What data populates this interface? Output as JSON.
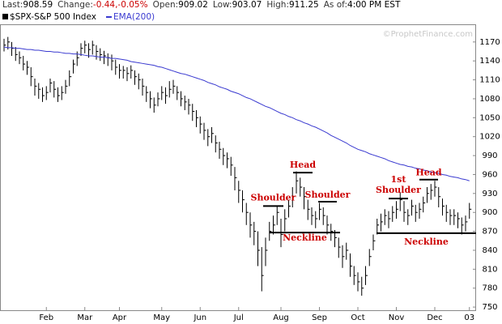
{
  "header": [
    {
      "label": "Last:",
      "value": "908.59"
    },
    {
      "label": "Change:",
      "value": "-0.44,-0.05%"
    },
    {
      "label": "Open:",
      "value": "909.02"
    },
    {
      "label": "Low:",
      "value": "903.07"
    },
    {
      "label": "High:",
      "value": "911.25"
    },
    {
      "label": "As of:",
      "value": "4:00 PM EST"
    }
  ],
  "watermark": "©ProphetFinance.com",
  "chart_data": {
    "type": "ohlc",
    "categories": [
      null,
      null,
      null,
      null,
      null,
      null,
      null,
      null,
      null,
      null,
      null,
      "Feb",
      null,
      null,
      null,
      null,
      null,
      null,
      null,
      null,
      null,
      "Mar",
      null,
      null,
      null,
      null,
      null,
      null,
      null,
      null,
      "Apr",
      null,
      null,
      null,
      null,
      null,
      null,
      null,
      null,
      null,
      null,
      "May",
      null,
      null,
      null,
      null,
      null,
      null,
      null,
      null,
      null,
      "Jun",
      null,
      null,
      null,
      null,
      null,
      null,
      null,
      null,
      null,
      "Jul",
      null,
      null,
      null,
      null,
      null,
      null,
      null,
      null,
      null,
      null,
      "Aug",
      null,
      null,
      null,
      null,
      null,
      null,
      null,
      null,
      null,
      "Sep",
      null,
      null,
      null,
      null,
      null,
      null,
      null,
      null,
      null,
      "Oct",
      null,
      null,
      null,
      null,
      null,
      null,
      null,
      null,
      null,
      "Nov",
      null,
      null,
      null,
      null,
      null,
      null,
      null,
      null,
      null,
      "Dec",
      null,
      null,
      null,
      null,
      null,
      null,
      null,
      null,
      "03"
    ],
    "series": [
      {
        "name": "$SPX-S&P 500 Index",
        "color": "#000000",
        "high": [
          1175,
          1178,
          1170,
          1162,
          1155,
          1148,
          1140,
          1130,
          1112,
          1105,
          1098,
          1100,
          1112,
          1108,
          1098,
          1100,
          1110,
          1125,
          1142,
          1155,
          1168,
          1172,
          1168,
          1172,
          1165,
          1160,
          1156,
          1152,
          1150,
          1142,
          1135,
          1132,
          1130,
          1133,
          1125,
          1120,
          1112,
          1100,
          1092,
          1082,
          1090,
          1100,
          1098,
          1108,
          1110,
          1100,
          1092,
          1085,
          1080,
          1072,
          1062,
          1052,
          1042,
          1032,
          1035,
          1022,
          1012,
          1002,
          995,
          988,
          972,
          950,
          935,
          915,
          900,
          885,
          870,
          845,
          860,
          885,
          895,
          910,
          890,
          905,
          920,
          940,
          965,
          955,
          940,
          920,
          908,
          902,
          915,
          908,
          895,
          882,
          872,
          860,
          848,
          852,
          835,
          815,
          805,
          798,
          815,
          842,
          865,
          890,
          898,
          905,
          902,
          910,
          918,
          932,
          918,
          905,
          920,
          912,
          915,
          925,
          940,
          945,
          950,
          940,
          922,
          912,
          905,
          905,
          900,
          892,
          895,
          915
        ],
        "low": [
          1155,
          1158,
          1148,
          1140,
          1135,
          1125,
          1118,
          1100,
          1085,
          1080,
          1075,
          1078,
          1090,
          1082,
          1075,
          1078,
          1088,
          1100,
          1120,
          1132,
          1148,
          1152,
          1145,
          1150,
          1142,
          1140,
          1135,
          1132,
          1125,
          1118,
          1112,
          1112,
          1108,
          1112,
          1102,
          1095,
          1085,
          1075,
          1065,
          1058,
          1068,
          1078,
          1072,
          1082,
          1088,
          1078,
          1068,
          1062,
          1055,
          1045,
          1035,
          1025,
          1015,
          1005,
          1010,
          995,
          985,
          975,
          970,
          958,
          935,
          915,
          900,
          880,
          860,
          848,
          815,
          775,
          815,
          855,
          865,
          880,
          845,
          870,
          892,
          908,
          930,
          925,
          905,
          888,
          880,
          875,
          888,
          880,
          865,
          855,
          845,
          828,
          812,
          825,
          798,
          785,
          775,
          768,
          785,
          815,
          840,
          865,
          870,
          880,
          875,
          885,
          890,
          902,
          885,
          880,
          895,
          885,
          890,
          900,
          915,
          920,
          925,
          908,
          895,
          885,
          880,
          880,
          875,
          865,
          870,
          890
        ],
        "close": [
          1165,
          1170,
          1160,
          1150,
          1145,
          1135,
          1130,
          1115,
          1100,
          1095,
          1085,
          1090,
          1105,
          1095,
          1085,
          1090,
          1100,
          1115,
          1135,
          1145,
          1160,
          1165,
          1158,
          1165,
          1155,
          1150,
          1148,
          1145,
          1140,
          1130,
          1125,
          1125,
          1120,
          1125,
          1115,
          1110,
          1100,
          1090,
          1080,
          1070,
          1080,
          1090,
          1085,
          1095,
          1100,
          1090,
          1080,
          1075,
          1070,
          1060,
          1050,
          1040,
          1030,
          1020,
          1025,
          1010,
          1000,
          990,
          985,
          975,
          955,
          935,
          920,
          900,
          880,
          870,
          840,
          800,
          840,
          870,
          880,
          900,
          865,
          890,
          910,
          925,
          950,
          940,
          925,
          905,
          895,
          890,
          905,
          895,
          880,
          870,
          860,
          845,
          830,
          840,
          815,
          800,
          790,
          780,
          800,
          830,
          855,
          880,
          885,
          895,
          890,
          900,
          905,
          920,
          900,
          895,
          910,
          900,
          905,
          915,
          930,
          935,
          940,
          925,
          910,
          900,
          895,
          895,
          890,
          880,
          885,
          905
        ]
      },
      {
        "name": "EMA(200)",
        "color": "#3a3ad0",
        "values": [
          1162,
          1161,
          1161,
          1160,
          1160,
          1159,
          1158,
          1158,
          1157,
          1157,
          1156,
          1155,
          1155,
          1154,
          1154,
          1153,
          1152,
          1152,
          1151,
          1151,
          1150,
          1149,
          1148,
          1148,
          1147,
          1146,
          1146,
          1145,
          1144,
          1144,
          1143,
          1142,
          1141,
          1139,
          1138,
          1137,
          1136,
          1135,
          1134,
          1133,
          1131,
          1130,
          1128,
          1126,
          1124,
          1122,
          1120,
          1119,
          1117,
          1115,
          1113,
          1111,
          1109,
          1106,
          1104,
          1102,
          1099,
          1097,
          1095,
          1092,
          1090,
          1088,
          1085,
          1082,
          1080,
          1077,
          1074,
          1071,
          1068,
          1066,
          1063,
          1060,
          1057,
          1055,
          1052,
          1050,
          1047,
          1045,
          1042,
          1040,
          1037,
          1035,
          1032,
          1029,
          1026,
          1022,
          1019,
          1016,
          1013,
          1010,
          1006,
          1003,
          1000,
          998,
          996,
          993,
          991,
          989,
          987,
          985,
          982,
          980,
          978,
          976,
          975,
          973,
          972,
          970,
          969,
          967,
          966,
          964,
          963,
          962,
          960,
          959,
          957,
          956,
          955,
          953,
          952,
          950
        ]
      }
    ],
    "ylim": [
      745,
      1198
    ],
    "yticks": [
      750,
      780,
      810,
      840,
      870,
      900,
      930,
      960,
      990,
      1020,
      1050,
      1080,
      1110,
      1140,
      1170
    ],
    "annotations": [
      {
        "lines": [
          "Shoulder"
        ],
        "level": 910
      },
      {
        "lines": [
          "Head"
        ],
        "level": 963
      },
      {
        "lines": [
          "Shoulder"
        ],
        "level": 917
      },
      {
        "lines": [
          "Neckline"
        ],
        "level": 868
      },
      {
        "lines": [
          "1st",
          "Shoulder"
        ],
        "level": 922
      },
      {
        "lines": [
          "Head"
        ],
        "level": 952
      },
      {
        "lines": [
          "Neckline"
        ],
        "level": 867
      }
    ]
  }
}
